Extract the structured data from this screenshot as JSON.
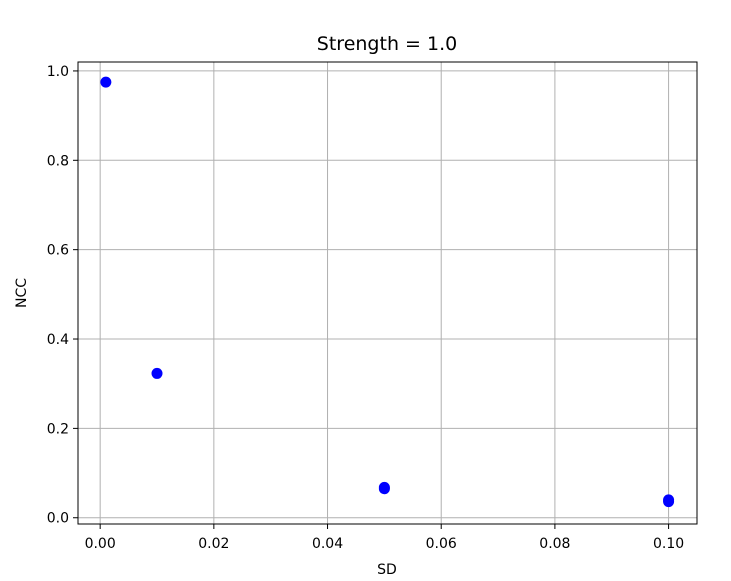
{
  "chart_data": {
    "type": "scatter",
    "title": "Strength = 1.0",
    "xlabel": "SD",
    "ylabel": "NCC",
    "xlim": [
      -0.0039,
      0.105
    ],
    "ylim": [
      -0.014,
      1.02
    ],
    "xticks": [
      0.0,
      0.02,
      0.04,
      0.06,
      0.08,
      0.1
    ],
    "xtick_labels": [
      "0.00",
      "0.02",
      "0.04",
      "0.06",
      "0.08",
      "0.10"
    ],
    "yticks": [
      0.0,
      0.2,
      0.4,
      0.6,
      0.8,
      1.0
    ],
    "ytick_labels": [
      "0.0",
      "0.2",
      "0.4",
      "0.6",
      "0.8",
      "1.0"
    ],
    "grid": true,
    "series": [
      {
        "color": "#0000ff",
        "points": [
          {
            "x": 0.001,
            "y": 0.975
          },
          {
            "x": 0.01,
            "y": 0.323
          },
          {
            "x": 0.05,
            "y": 0.068
          },
          {
            "x": 0.05,
            "y": 0.065
          },
          {
            "x": 0.1,
            "y": 0.04
          },
          {
            "x": 0.1,
            "y": 0.036
          }
        ]
      }
    ]
  }
}
